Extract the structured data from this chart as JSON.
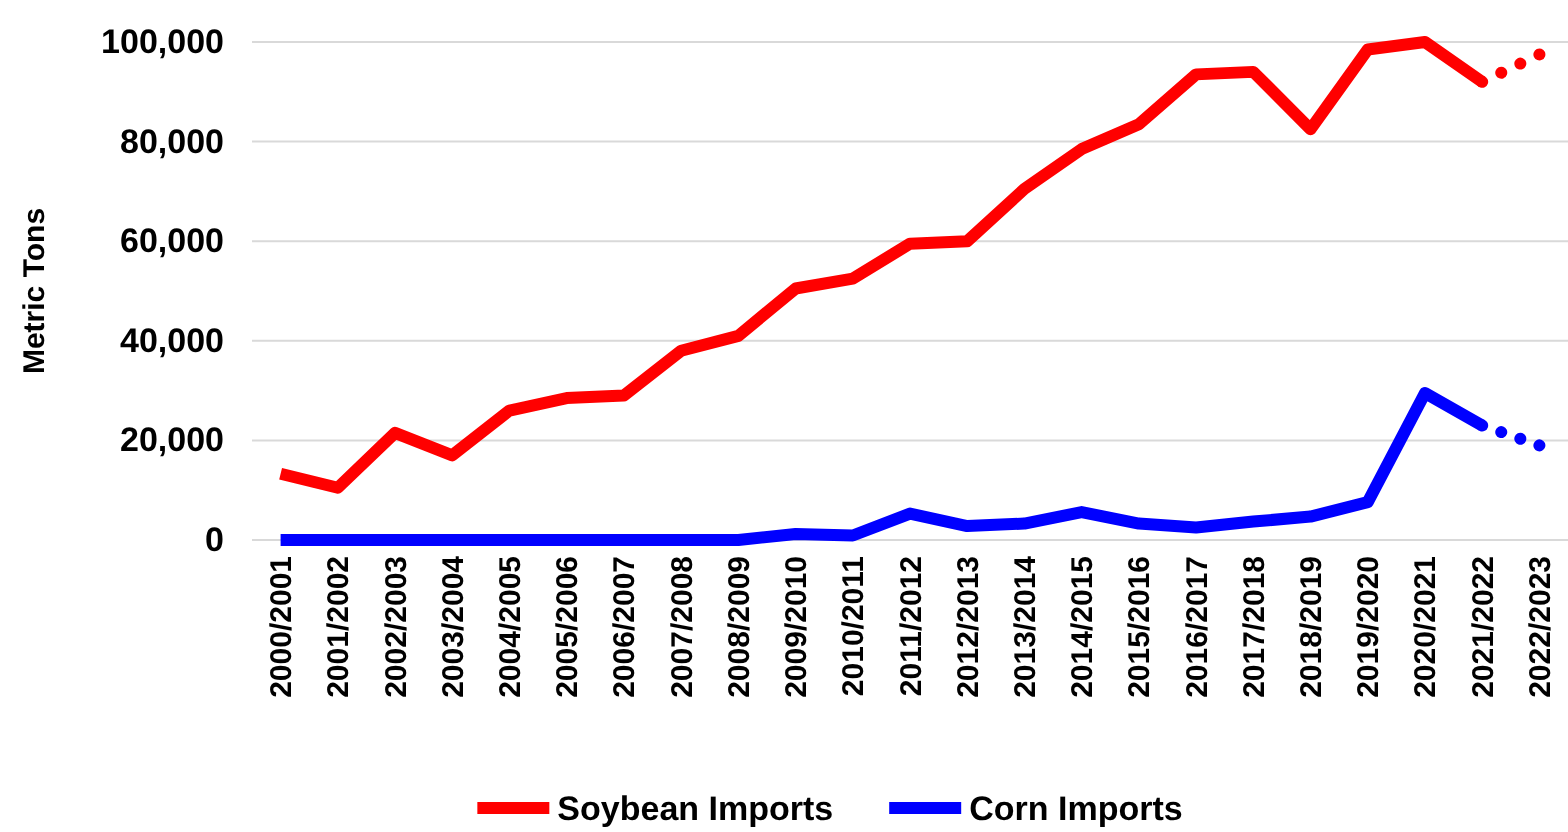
{
  "chart_data": {
    "type": "line",
    "ylabel": "Metric Tons",
    "categories": [
      "2000/2001",
      "2001/2002",
      "2002/2003",
      "2003/2004",
      "2004/2005",
      "2005/2006",
      "2006/2007",
      "2007/2008",
      "2008/2009",
      "2009/2010",
      "2010/2011",
      "2011/2012",
      "2012/2013",
      "2013/2014",
      "2014/2015",
      "2015/2016",
      "2016/2017",
      "2017/2018",
      "2018/2019",
      "2019/2020",
      "2020/2021",
      "2021/2022",
      "2022/2023"
    ],
    "series": [
      {
        "name": "Soybean Imports",
        "color": "#ff0000",
        "line_style": "solid",
        "values": [
          13300,
          10500,
          21500,
          17000,
          26000,
          28500,
          29000,
          38000,
          41000,
          50500,
          52500,
          59500,
          60000,
          70500,
          78500,
          83500,
          93500,
          94000,
          82500,
          98500,
          100000,
          92000,
          null
        ]
      },
      {
        "name": "Corn Imports",
        "color": "#0000ff",
        "line_style": "solid",
        "values": [
          0,
          0,
          0,
          0,
          0,
          0,
          0,
          0,
          0,
          1200,
          900,
          5300,
          2800,
          3300,
          5600,
          3300,
          2500,
          3700,
          4700,
          7600,
          29500,
          23000,
          null
        ]
      },
      {
        "color": "#ff0000",
        "line_style": "dotted",
        "values": [
          null,
          null,
          null,
          null,
          null,
          null,
          null,
          null,
          null,
          null,
          null,
          null,
          null,
          null,
          null,
          null,
          null,
          null,
          null,
          null,
          null,
          92000,
          97500
        ]
      },
      {
        "color": "#0000ff",
        "line_style": "dotted",
        "values": [
          null,
          null,
          null,
          null,
          null,
          null,
          null,
          null,
          null,
          null,
          null,
          null,
          null,
          null,
          null,
          null,
          null,
          null,
          null,
          null,
          null,
          23000,
          19000
        ]
      }
    ],
    "ylim": [
      0,
      100000
    ],
    "yticks": [
      0,
      {
        "value": 20000,
        "label": "20,000"
      },
      {
        "value": 40000,
        "label": "40,000"
      },
      {
        "value": 60000,
        "label": "60,000"
      },
      {
        "value": 80000,
        "label": "80,000"
      },
      {
        "value": 100000,
        "label": "100,000"
      }
    ],
    "grid": "y",
    "legend": "bottom",
    "marker": "none"
  }
}
